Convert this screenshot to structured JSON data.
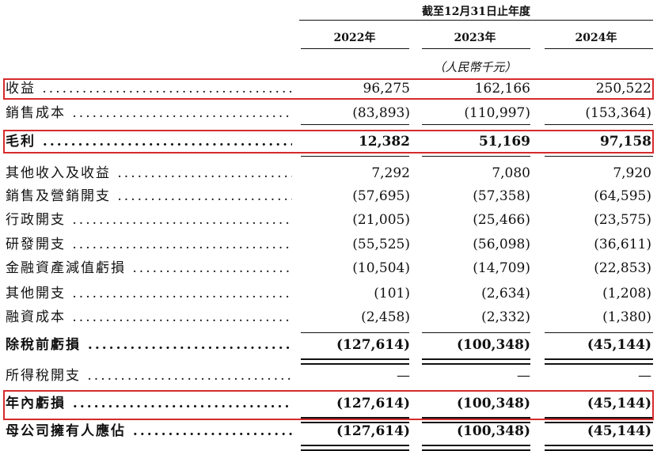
{
  "header": {
    "period": "截至12月31日止年度",
    "years": [
      "2022年",
      "2023年",
      "2024年"
    ],
    "unit": "（人民幣千元）"
  },
  "rows": [
    {
      "label": "收益",
      "values": [
        "96,275",
        "162,166",
        "250,522"
      ]
    },
    {
      "label": "銷售成本",
      "values": [
        "(83,893)",
        "(110,997)",
        "(153,364)"
      ]
    },
    {
      "label": "毛利",
      "values": [
        "12,382",
        "51,169",
        "97,158"
      ]
    },
    {
      "label": "其他收入及收益",
      "values": [
        "7,292",
        "7,080",
        "7,920"
      ]
    },
    {
      "label": "銷售及營銷開支",
      "values": [
        "(57,695)",
        "(57,358)",
        "(64,595)"
      ]
    },
    {
      "label": "行政開支",
      "values": [
        "(21,005)",
        "(25,466)",
        "(23,575)"
      ]
    },
    {
      "label": "研發開支",
      "values": [
        "(55,525)",
        "(56,098)",
        "(36,611)"
      ]
    },
    {
      "label": "金融資產減值虧損",
      "values": [
        "(10,504)",
        "(14,709)",
        "(22,853)"
      ]
    },
    {
      "label": "其他開支",
      "values": [
        "(101)",
        "(2,634)",
        "(1,208)"
      ]
    },
    {
      "label": "融資成本",
      "values": [
        "(2,458)",
        "(2,332)",
        "(1,380)"
      ]
    },
    {
      "label": "除稅前虧損",
      "values": [
        "(127,614)",
        "(100,348)",
        "(45,144)"
      ]
    },
    {
      "label": "所得稅開支",
      "values": [
        "—",
        "—",
        "—"
      ]
    },
    {
      "label": "年內虧損",
      "values": [
        "(127,614)",
        "(100,348)",
        "(45,144)"
      ]
    },
    {
      "label": "母公司擁有人應佔",
      "values": [
        "(127,614)",
        "(100,348)",
        "(45,144)"
      ]
    }
  ],
  "highlight_color": "#d62b2b"
}
